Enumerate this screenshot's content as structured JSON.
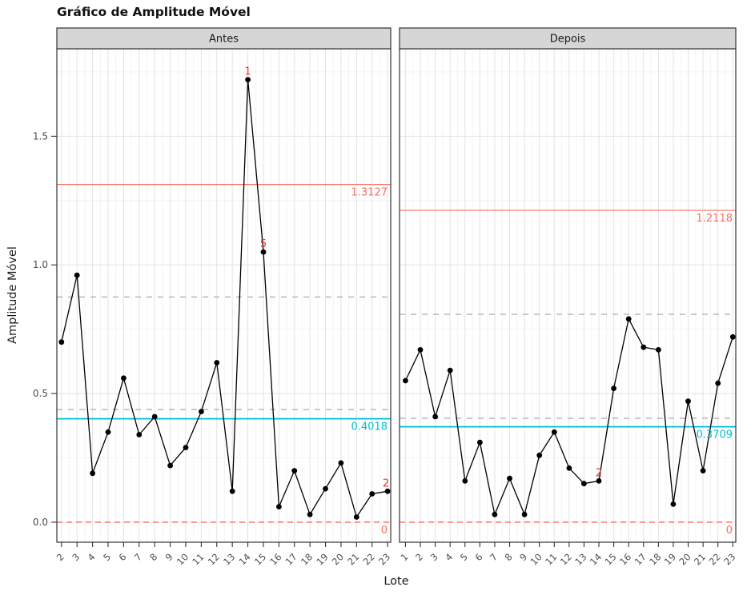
{
  "title": "Gráfico de Amplitude Móvel",
  "chart_data": {
    "type": "line",
    "title": "Gráfico de Amplitude Móvel",
    "xlabel": "Lote",
    "ylabel": "Amplitude Móvel",
    "grid": true,
    "ylim": [
      -0.078,
      1.84
    ],
    "y_ticks": [
      0.0,
      0.5,
      1.0,
      1.5
    ],
    "y_tick_labels": [
      "0.0",
      "0.5",
      "1.0",
      "1.5"
    ],
    "y_minor_ticks": [
      0.25,
      0.75,
      1.25,
      1.75
    ],
    "facets": [
      {
        "label": "Antes",
        "xlim": [
          1.7,
          23.2
        ],
        "x": [
          2,
          3,
          4,
          5,
          6,
          7,
          8,
          9,
          10,
          11,
          12,
          13,
          14,
          15,
          16,
          17,
          18,
          19,
          20,
          21,
          22,
          23
        ],
        "values": [
          0.7,
          0.96,
          0.19,
          0.35,
          0.56,
          0.34,
          0.41,
          0.22,
          0.29,
          0.43,
          0.62,
          0.12,
          1.72,
          1.05,
          0.06,
          0.2,
          0.03,
          0.13,
          0.23,
          0.02,
          0.11,
          0.12
        ],
        "ucl": {
          "value": 1.3127,
          "label": "1.3127"
        },
        "center": {
          "value": 0.4018,
          "label": "0.4018"
        },
        "lcl": {
          "value": 0,
          "label": "0"
        },
        "zone_lines": [
          0.4376,
          0.8751
        ],
        "violations": [
          {
            "x": 14,
            "label": "1"
          },
          {
            "x": 15,
            "label": "5"
          },
          {
            "x": 23,
            "label": "2"
          }
        ]
      },
      {
        "label": "Depois",
        "xlim": [
          0.6,
          23.2
        ],
        "x": [
          1,
          2,
          3,
          4,
          5,
          6,
          7,
          8,
          9,
          10,
          11,
          12,
          13,
          14,
          15,
          16,
          17,
          18,
          19,
          20,
          21,
          22,
          23
        ],
        "values": [
          0.55,
          0.67,
          0.41,
          0.59,
          0.16,
          0.31,
          0.03,
          0.17,
          0.03,
          0.26,
          0.35,
          0.21,
          0.15,
          0.16,
          0.52,
          0.79,
          0.68,
          0.67,
          0.07,
          0.47,
          0.2,
          0.54,
          0.72
        ],
        "ucl": {
          "value": 1.2118,
          "label": "1.2118"
        },
        "center": {
          "value": 0.3709,
          "label": "0.3709"
        },
        "lcl": {
          "value": 0,
          "label": "0"
        },
        "zone_lines": [
          0.4039,
          0.8079
        ],
        "violations": [
          {
            "x": 14,
            "label": "2"
          }
        ]
      }
    ],
    "colors": {
      "control_line_red": "#FA6E62",
      "violation_red": "#E8362A",
      "center_cyan": "#00BED6",
      "zone_gray": "#AAAAAA",
      "data_line": "#000000",
      "grid_major": "#E3E3E3",
      "grid_minor": "#F1F1F1",
      "panel_border": "#333333",
      "strip_fill": "#D6D6D6",
      "strip_text": "#1A1A1A",
      "tick_text": "#4D4D4D",
      "axis_title_text": "#1A1A1A"
    }
  }
}
